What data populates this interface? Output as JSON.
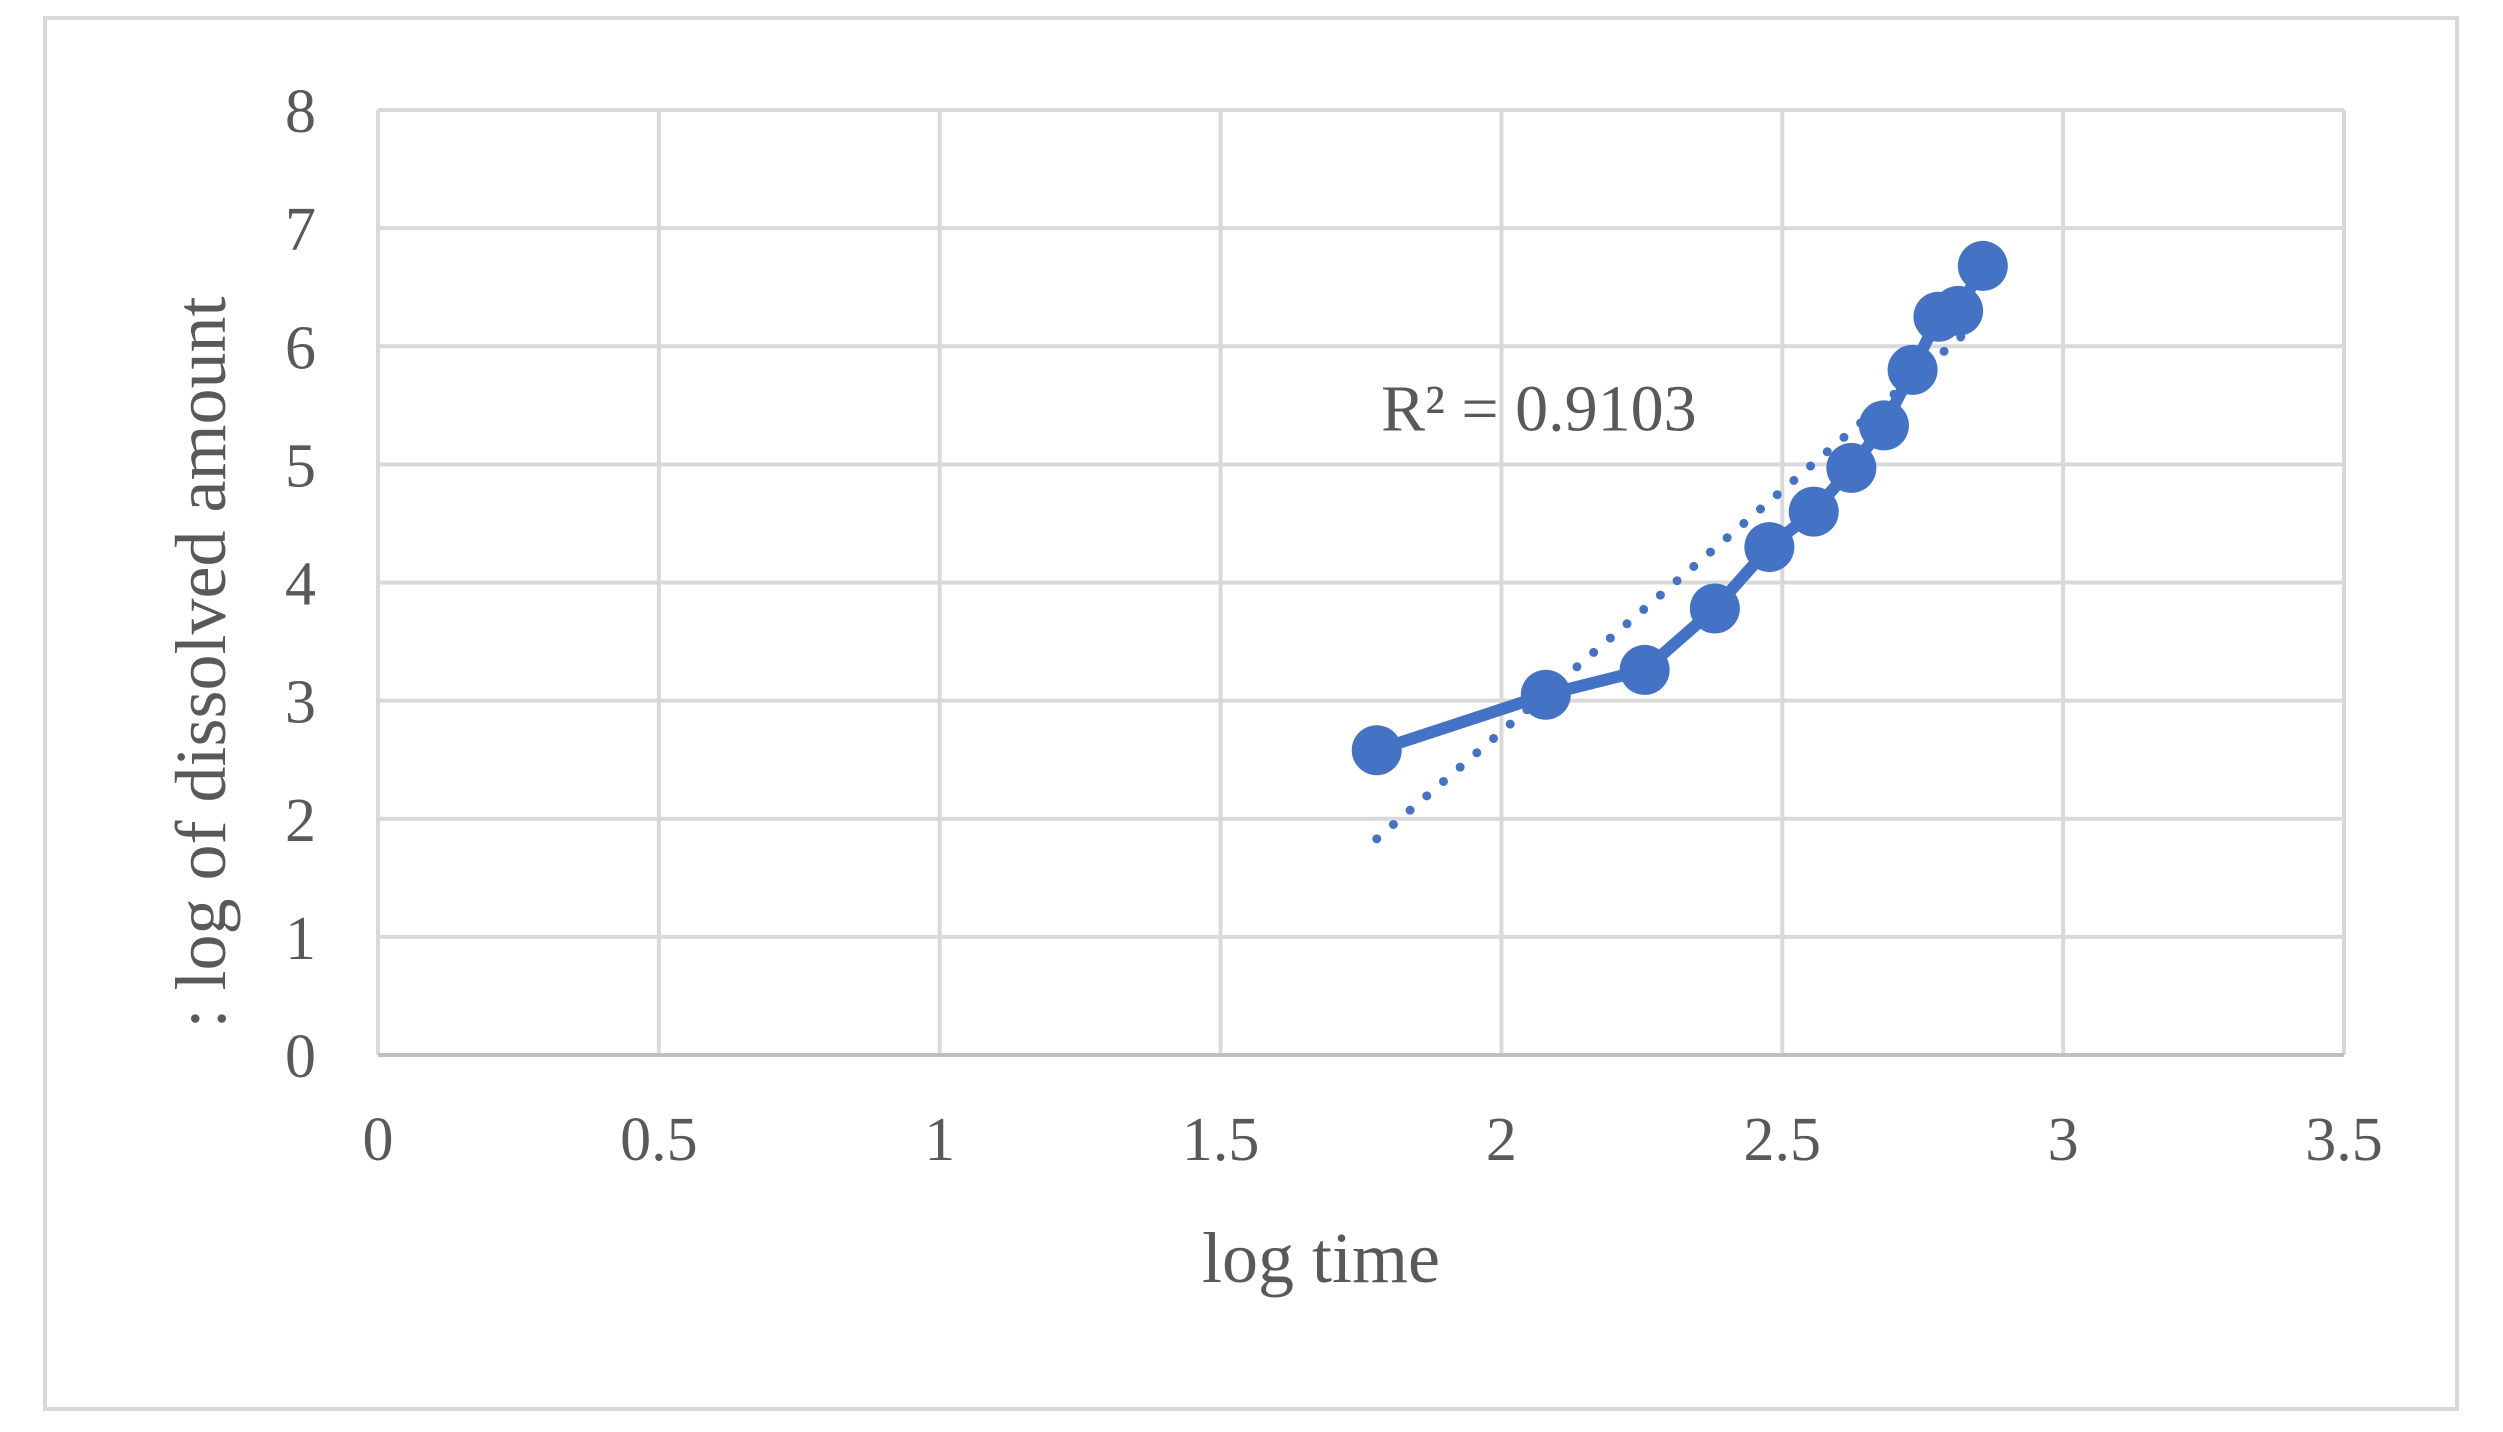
{
  "chart_data": {
    "type": "scatter",
    "xlabel": "log time",
    "ylabel": ": log of dissolved amount",
    "xlim": [
      0,
      3.5
    ],
    "ylim": [
      0,
      8
    ],
    "x_ticks": [
      "0",
      "0.5",
      "1",
      "1.5",
      "2",
      "2.5",
      "3",
      "3.5"
    ],
    "y_ticks": [
      "0",
      "1",
      "2",
      "3",
      "4",
      "5",
      "6",
      "7",
      "8"
    ],
    "grid": true,
    "series": [
      {
        "marker": "circle",
        "line": "solid",
        "color": "#4472c4",
        "x": [
          1.778,
          2.079,
          2.255,
          2.38,
          2.477,
          2.556,
          2.623,
          2.681,
          2.732,
          2.778,
          2.813,
          2.857
        ],
        "y": [
          2.58,
          3.05,
          3.26,
          3.78,
          4.3,
          4.6,
          4.97,
          5.33,
          5.8,
          6.25,
          6.3,
          6.68
        ]
      }
    ],
    "trendline": {
      "style": "dotted",
      "color": "#4472c4",
      "x": [
        1.778,
        2.823
      ],
      "y": [
        1.83,
        6.1
      ]
    },
    "annotations": [
      {
        "text": "R² = 0.9103",
        "x": 2.12,
        "y": 5.5
      }
    ]
  }
}
